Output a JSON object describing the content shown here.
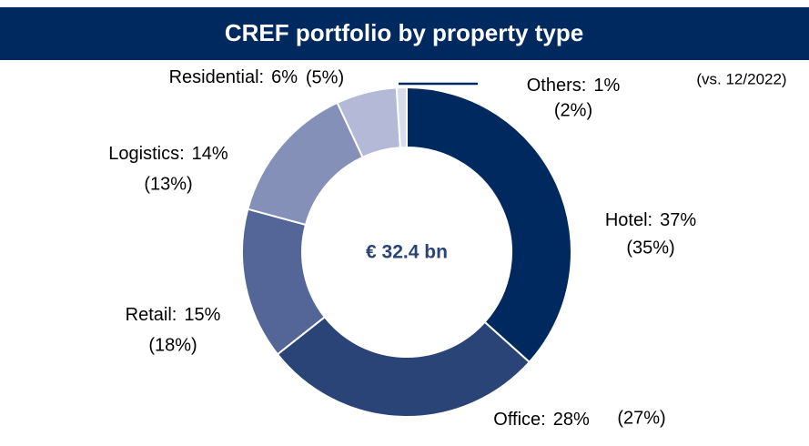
{
  "chart_data": {
    "type": "donut",
    "title": "CREF portfolio by property type",
    "center_label": "€ 32.4 bn",
    "note": "(vs. 12/2022)",
    "categories": [
      "Hotel:",
      "Office:",
      "Retail:",
      "Logistics:",
      "Residential:",
      "Others:"
    ],
    "values": [
      37,
      28,
      15,
      14,
      6,
      1
    ],
    "value_labels": [
      "37%",
      "28%",
      "15%",
      "14%",
      "6%",
      "1%"
    ],
    "prior_values": [
      35,
      27,
      18,
      13,
      5,
      2
    ],
    "prior_value_labels": [
      "(35%)",
      "(27%)",
      "(18%)",
      "(13%)",
      "(5%)",
      "(2%)"
    ],
    "colors": [
      "#002960",
      "#2a4478",
      "#546597",
      "#8590b9",
      "#b4b9d7",
      "#d9dce9"
    ]
  }
}
